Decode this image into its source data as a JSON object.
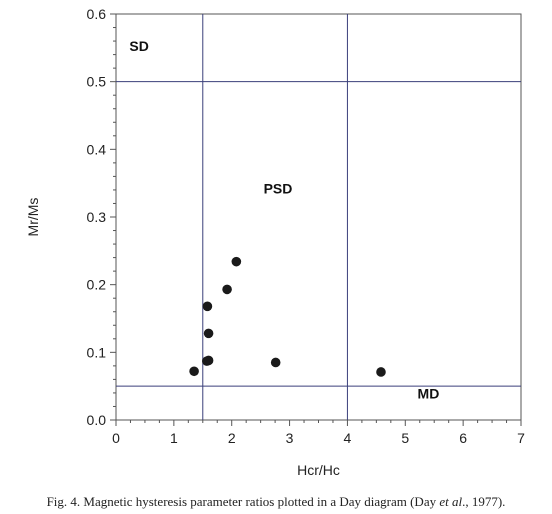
{
  "chart_data": {
    "type": "scatter",
    "title": "",
    "xlabel": "Hcr/Hc",
    "ylabel": "Mr/Ms",
    "xlim": [
      0,
      7
    ],
    "ylim": [
      0,
      0.6
    ],
    "x_ticks": [
      "0",
      "1",
      "2",
      "3",
      "4",
      "5",
      "6",
      "7"
    ],
    "y_ticks": [
      "0.0",
      "0.1",
      "0.2",
      "0.3",
      "0.4",
      "0.5",
      "0.6"
    ],
    "grid": false,
    "points": [
      {
        "x": 1.35,
        "y": 0.072
      },
      {
        "x": 1.57,
        "y": 0.087
      },
      {
        "x": 1.6,
        "y": 0.088
      },
      {
        "x": 1.58,
        "y": 0.168
      },
      {
        "x": 1.6,
        "y": 0.128
      },
      {
        "x": 1.92,
        "y": 0.193
      },
      {
        "x": 2.08,
        "y": 0.234
      },
      {
        "x": 2.76,
        "y": 0.085
      },
      {
        "x": 4.58,
        "y": 0.071
      }
    ],
    "reference_lines": {
      "vertical": [
        1.5,
        4.0
      ],
      "horizontal": [
        0.05,
        0.5
      ]
    },
    "region_labels": [
      {
        "text": "SD",
        "x": 0.4,
        "y": 0.545
      },
      {
        "text": "PSD",
        "x": 2.8,
        "y": 0.335
      },
      {
        "text": "MD",
        "x": 5.4,
        "y": 0.032
      }
    ],
    "point_color": "#1a1a1a",
    "line_color": "#3a3f7a"
  },
  "caption": {
    "prefix": "Fig. 4. Magnetic hysteresis parameter ratios plotted in a Day diagram (Day ",
    "italic": "et al",
    "suffix": "., 1977)."
  }
}
